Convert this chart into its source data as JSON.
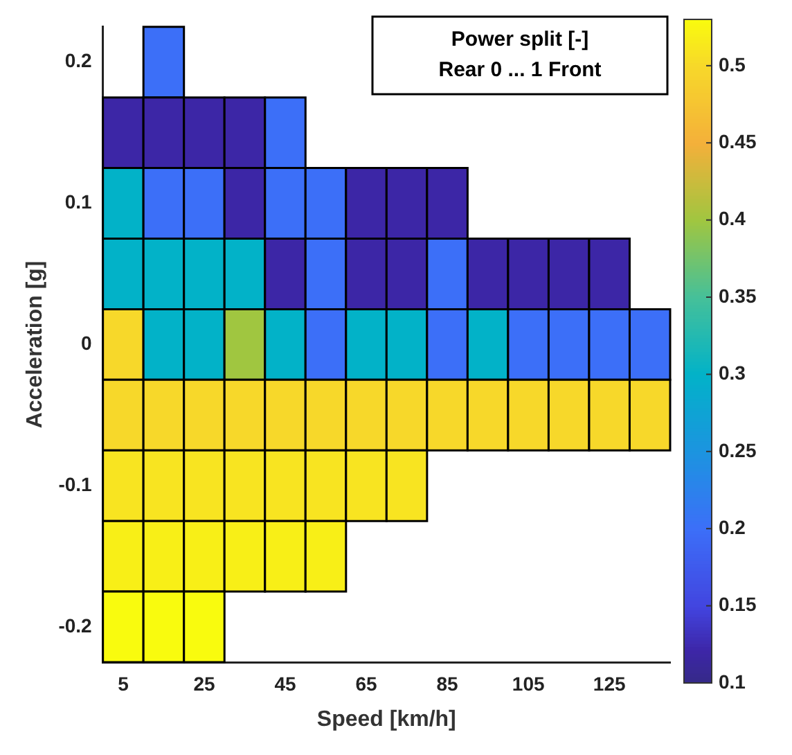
{
  "chart_data": {
    "type": "heatmap",
    "xlabel": "Speed [km/h]",
    "ylabel": "Acceleration [g]",
    "clabel": "Power split [-]\nRear 0 ... 1 Front",
    "categories": [
      "5",
      null,
      "25",
      null,
      "45",
      null,
      "65",
      null,
      "85",
      null,
      "105",
      null,
      "125",
      null
    ],
    "y_categories": [
      "0.2",
      null,
      "0.1",
      null,
      "0",
      null,
      "-0.1",
      null,
      "-0.2"
    ],
    "cells": [
      [
        null,
        0.2,
        null,
        null,
        null,
        null,
        null,
        null,
        null,
        null,
        null,
        null,
        null,
        null
      ],
      [
        0.12,
        0.12,
        0.12,
        0.12,
        0.2,
        null,
        null,
        null,
        null,
        null,
        null,
        null,
        null,
        null
      ],
      [
        0.3,
        0.2,
        0.2,
        0.12,
        0.2,
        0.2,
        0.12,
        0.12,
        0.12,
        null,
        null,
        null,
        null,
        null
      ],
      [
        0.3,
        0.3,
        0.3,
        0.3,
        0.12,
        0.2,
        0.12,
        0.12,
        0.2,
        0.12,
        0.12,
        0.12,
        0.12,
        null
      ],
      [
        0.5,
        0.3,
        0.3,
        0.4,
        0.3,
        0.2,
        0.3,
        0.3,
        0.2,
        0.3,
        0.2,
        0.2,
        0.2,
        0.2
      ],
      [
        0.5,
        0.5,
        0.5,
        0.5,
        0.5,
        0.5,
        0.5,
        0.5,
        0.5,
        0.5,
        0.5,
        0.5,
        0.5,
        0.5
      ],
      [
        0.51,
        0.51,
        0.51,
        0.51,
        0.51,
        0.51,
        0.51,
        0.51,
        null,
        null,
        null,
        null,
        null,
        null
      ],
      [
        0.52,
        0.52,
        0.52,
        0.52,
        0.52,
        0.52,
        null,
        null,
        null,
        null,
        null,
        null,
        null,
        null
      ],
      [
        0.53,
        0.53,
        0.53,
        null,
        null,
        null,
        null,
        null,
        null,
        null,
        null,
        null,
        null,
        null
      ]
    ],
    "clim": [
      0.1,
      0.53
    ],
    "cticks": [
      0.1,
      0.15,
      0.2,
      0.25,
      0.3,
      0.35,
      0.4,
      0.45,
      0.5
    ]
  }
}
